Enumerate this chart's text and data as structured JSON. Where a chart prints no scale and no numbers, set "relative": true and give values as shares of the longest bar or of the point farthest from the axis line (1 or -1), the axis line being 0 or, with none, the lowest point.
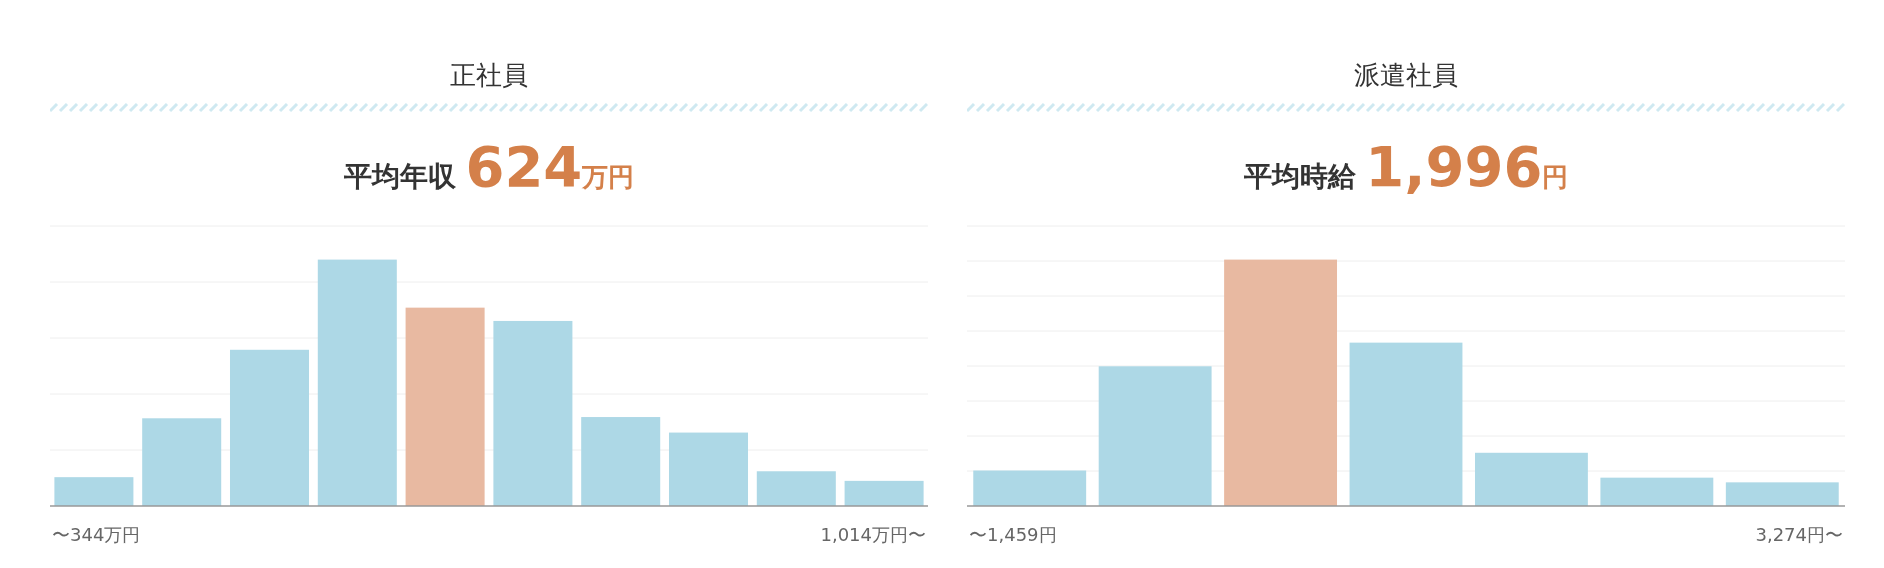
{
  "chart_data": [
    {
      "type": "bar",
      "title": "正社員",
      "subtitle": "平均年収 624万円",
      "categories": [
        null,
        null,
        null,
        null,
        null,
        null,
        null,
        null,
        null,
        null
      ],
      "relative": true,
      "grid": "y",
      "values": [
        0.117,
        0.356,
        0.634,
        1,
        0.805,
        0.751,
        0.361,
        0.298,
        0.141,
        0.102
      ],
      "colors": [
        "#add8e6",
        "#add8e6",
        "#add8e6",
        "#add8e6",
        "#e8b9a1",
        "#add8e6",
        "#add8e6",
        "#add8e6",
        "#add8e6",
        "#add8e6"
      ],
      "annotations": [
        "〜344万円",
        "1,014万円〜"
      ]
    },
    {
      "type": "bar",
      "title": "派遣社員",
      "subtitle": "平均時給 1,996円",
      "categories": [
        null,
        null,
        null,
        null,
        null,
        null,
        null
      ],
      "relative": true,
      "grid": "y",
      "values": [
        0.144,
        0.567,
        1,
        0.663,
        0.216,
        0.115,
        0.096
      ],
      "colors": [
        "#add8e6",
        "#add8e6",
        "#e8b9a1",
        "#add8e6",
        "#add8e6",
        "#add8e6",
        "#add8e6"
      ],
      "annotations": [
        "〜1,459円",
        "3,274円〜"
      ]
    }
  ]
}
